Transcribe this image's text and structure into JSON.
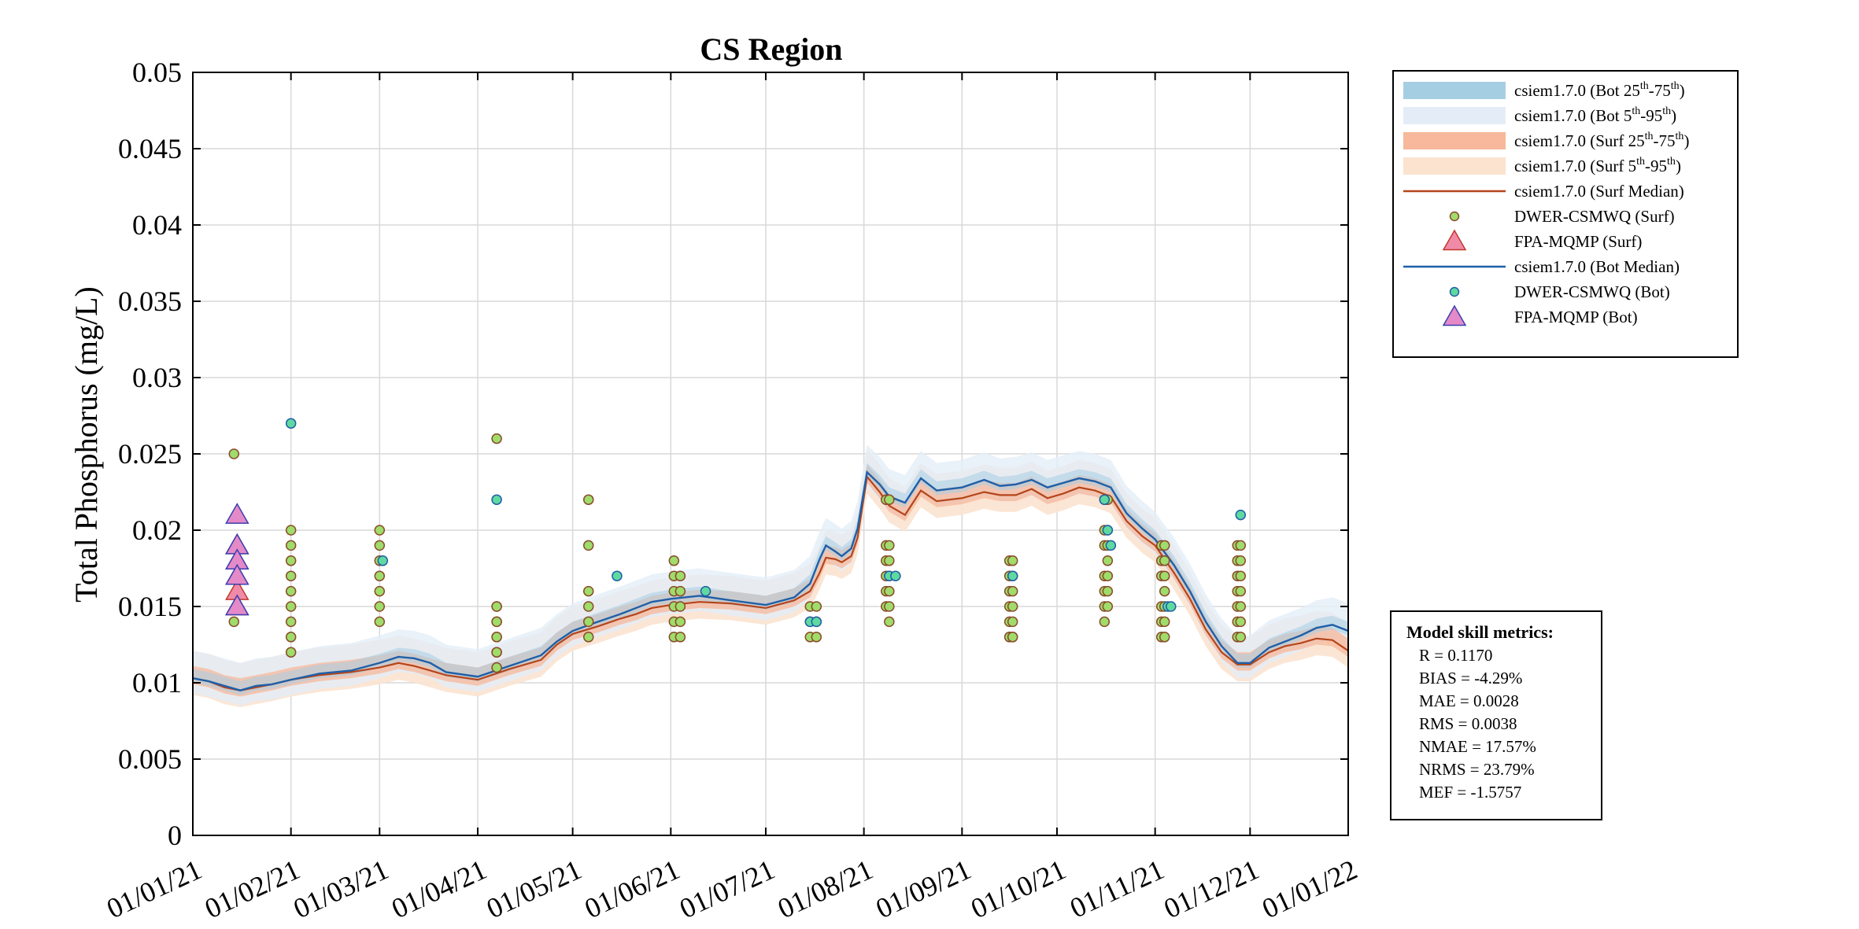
{
  "chart_data": {
    "type": "line",
    "title": "CS Region",
    "xlabel": "",
    "ylabel": "Total Phosphorus (mg/L)",
    "ylim": [
      0,
      0.05
    ],
    "xlim": [
      0,
      365
    ],
    "y_ticks": [
      "0",
      "0.005",
      "0.01",
      "0.015",
      "0.02",
      "0.025",
      "0.03",
      "0.035",
      "0.04",
      "0.045",
      "0.05"
    ],
    "x_ticks": [
      "01/01/21",
      "01/02/21",
      "01/03/21",
      "01/04/21",
      "01/05/21",
      "01/06/21",
      "01/07/21",
      "01/08/21",
      "01/09/21",
      "01/10/21",
      "01/11/21",
      "01/12/21",
      "01/01/22"
    ],
    "grid": true,
    "legend_position": "outside-top-right",
    "legend": [
      {
        "key": "bot2575",
        "text": "csiem1.7.0 (Bot 25",
        "sup1": "th",
        "mid": "-75",
        "sup2": "th",
        "end": ")",
        "color": "#a6cee3",
        "style": "band"
      },
      {
        "key": "bot595",
        "text": "csiem1.7.0 (Bot 5",
        "sup1": "th",
        "mid": "-95",
        "sup2": "th",
        "end": ")",
        "color": "#e4edf7",
        "style": "band"
      },
      {
        "key": "surf2575",
        "text": "csiem1.7.0 (Surf 25",
        "sup1": "th",
        "mid": "-75",
        "sup2": "th",
        "end": ")",
        "color": "#f7b89b",
        "style": "band"
      },
      {
        "key": "surf595",
        "text": "csiem1.7.0 (Surf 5",
        "sup1": "th",
        "mid": "-95",
        "sup2": "th",
        "end": ")",
        "color": "#fbe3d0",
        "style": "band"
      },
      {
        "key": "surfmed",
        "text": "csiem1.7.0 (Surf Median)",
        "color": "#b5451b",
        "style": "line"
      },
      {
        "key": "dwersurf",
        "text": "DWER-CSMWQ (Surf)",
        "color": "#9fdc6b",
        "edge": "#8a4b2a",
        "style": "circle"
      },
      {
        "key": "fpasurf",
        "text": "FPA-MQMP (Surf)",
        "color": "#f08aa9",
        "edge": "#c0392b",
        "style": "triangle"
      },
      {
        "key": "botmed",
        "text": "csiem1.7.0 (Bot Median)",
        "color": "#1f5fa8",
        "style": "line"
      },
      {
        "key": "dwerbot",
        "text": "DWER-CSMWQ (Bot)",
        "color": "#5fd9a0",
        "edge": "#1f5fa8",
        "style": "circle"
      },
      {
        "key": "fpabot",
        "text": "FPA-MQMP (Bot)",
        "color": "#e58ac8",
        "edge": "#3a3fb0",
        "style": "triangle"
      }
    ],
    "surf_median": {
      "x": [
        0,
        5,
        10,
        15,
        20,
        25,
        31,
        40,
        50,
        59,
        65,
        70,
        75,
        80,
        90,
        100,
        110,
        115,
        120,
        128,
        135,
        140,
        145,
        151,
        160,
        170,
        181,
        190,
        195,
        198,
        200,
        203,
        205,
        208,
        210,
        213,
        217,
        220,
        225,
        230,
        235,
        243,
        250,
        255,
        260,
        265,
        270,
        275,
        280,
        285,
        290,
        295,
        300,
        304,
        310,
        315,
        320,
        325,
        330,
        334,
        340,
        345,
        350,
        355,
        360,
        365
      ],
      "y": [
        0.0103,
        0.0101,
        0.0097,
        0.0095,
        0.0097,
        0.0099,
        0.0102,
        0.0105,
        0.0107,
        0.011,
        0.0113,
        0.0111,
        0.0108,
        0.0105,
        0.0102,
        0.0109,
        0.0115,
        0.0125,
        0.0132,
        0.0137,
        0.0142,
        0.0145,
        0.0149,
        0.0151,
        0.0153,
        0.0152,
        0.0149,
        0.0154,
        0.016,
        0.0172,
        0.0182,
        0.0181,
        0.0179,
        0.0183,
        0.0195,
        0.0235,
        0.0225,
        0.0216,
        0.021,
        0.0226,
        0.0219,
        0.0221,
        0.0225,
        0.0223,
        0.0223,
        0.0227,
        0.0221,
        0.0224,
        0.0228,
        0.0226,
        0.0222,
        0.0206,
        0.0196,
        0.019,
        0.0172,
        0.0155,
        0.0135,
        0.012,
        0.0112,
        0.0112,
        0.012,
        0.0124,
        0.0126,
        0.0129,
        0.0128,
        0.0121
      ]
    },
    "bot_median": {
      "x": [
        0,
        5,
        10,
        15,
        20,
        25,
        31,
        40,
        50,
        59,
        65,
        70,
        75,
        80,
        90,
        100,
        110,
        115,
        120,
        128,
        135,
        140,
        145,
        151,
        160,
        170,
        181,
        190,
        195,
        198,
        200,
        203,
        205,
        208,
        210,
        213,
        217,
        220,
        225,
        230,
        235,
        243,
        250,
        255,
        260,
        265,
        270,
        275,
        280,
        285,
        290,
        295,
        300,
        304,
        310,
        315,
        320,
        325,
        330,
        334,
        340,
        345,
        350,
        355,
        360,
        365
      ],
      "y": [
        0.0103,
        0.0101,
        0.0098,
        0.0095,
        0.0098,
        0.0099,
        0.0102,
        0.0106,
        0.0108,
        0.0113,
        0.0117,
        0.0116,
        0.0113,
        0.0107,
        0.0104,
        0.0111,
        0.0118,
        0.0127,
        0.0134,
        0.014,
        0.0145,
        0.0149,
        0.0153,
        0.0155,
        0.0157,
        0.0154,
        0.0151,
        0.0156,
        0.0165,
        0.0181,
        0.019,
        0.0186,
        0.0183,
        0.0188,
        0.0201,
        0.0238,
        0.023,
        0.0222,
        0.0218,
        0.0234,
        0.0226,
        0.0228,
        0.0233,
        0.0229,
        0.023,
        0.0233,
        0.0228,
        0.0231,
        0.0234,
        0.0232,
        0.0228,
        0.0211,
        0.0201,
        0.0194,
        0.0177,
        0.016,
        0.014,
        0.0124,
        0.0113,
        0.0113,
        0.0123,
        0.0127,
        0.0131,
        0.0136,
        0.0138,
        0.0134
      ]
    },
    "dwer_surf": {
      "x": [
        13,
        13,
        31,
        31,
        31,
        31,
        31,
        31,
        31,
        31,
        31,
        59,
        59,
        59,
        59,
        59,
        59,
        59,
        96,
        96,
        96,
        96,
        96,
        96,
        96,
        96,
        96,
        96,
        125,
        125,
        125,
        125,
        125,
        125,
        152,
        152,
        152,
        152,
        152,
        152,
        154,
        154,
        154,
        154,
        154,
        195,
        195,
        195,
        197,
        197,
        197,
        219,
        219,
        219,
        219,
        219,
        219,
        220,
        220,
        220,
        220,
        220,
        220,
        220,
        258,
        258,
        258,
        258,
        258,
        258,
        258,
        259,
        259,
        259,
        259,
        259,
        259,
        259,
        288,
        288,
        288,
        288,
        288,
        288,
        288,
        289,
        289,
        289,
        289,
        289,
        289,
        289,
        306,
        306,
        306,
        306,
        306,
        306,
        307,
        307,
        307,
        307,
        307,
        307,
        307,
        330,
        330,
        330,
        330,
        330,
        330,
        330,
        331,
        331,
        331,
        331,
        331,
        331,
        331
      ],
      "y": [
        0.025,
        0.014,
        0.02,
        0.019,
        0.018,
        0.017,
        0.016,
        0.015,
        0.014,
        0.013,
        0.012,
        0.02,
        0.019,
        0.018,
        0.017,
        0.016,
        0.015,
        0.014,
        0.026,
        0.015,
        0.014,
        0.013,
        0.012,
        0.015,
        0.014,
        0.013,
        0.012,
        0.011,
        0.022,
        0.019,
        0.016,
        0.015,
        0.014,
        0.013,
        0.018,
        0.017,
        0.016,
        0.015,
        0.014,
        0.013,
        0.017,
        0.016,
        0.015,
        0.014,
        0.013,
        0.015,
        0.014,
        0.013,
        0.015,
        0.014,
        0.013,
        0.022,
        0.019,
        0.018,
        0.017,
        0.016,
        0.015,
        0.022,
        0.019,
        0.018,
        0.017,
        0.016,
        0.015,
        0.014,
        0.018,
        0.017,
        0.016,
        0.015,
        0.014,
        0.013,
        0.013,
        0.018,
        0.017,
        0.016,
        0.015,
        0.014,
        0.013,
        0.013,
        0.022,
        0.02,
        0.019,
        0.017,
        0.016,
        0.015,
        0.014,
        0.022,
        0.02,
        0.019,
        0.018,
        0.017,
        0.016,
        0.015,
        0.019,
        0.018,
        0.017,
        0.015,
        0.014,
        0.013,
        0.019,
        0.018,
        0.017,
        0.016,
        0.015,
        0.014,
        0.013,
        0.019,
        0.018,
        0.017,
        0.016,
        0.015,
        0.014,
        0.013,
        0.019,
        0.018,
        0.017,
        0.016,
        0.015,
        0.014,
        0.013
      ]
    },
    "dwer_bot": {
      "x": [
        31,
        60,
        96,
        134,
        162,
        195,
        197,
        220,
        222,
        259,
        288,
        289,
        290,
        308,
        309,
        331
      ],
      "y": [
        0.027,
        0.018,
        0.022,
        0.017,
        0.016,
        0.014,
        0.014,
        0.017,
        0.017,
        0.017,
        0.022,
        0.02,
        0.019,
        0.015,
        0.015,
        0.021
      ]
    },
    "fpa_surf": {
      "x": [
        14,
        14,
        14,
        14,
        14
      ],
      "y": [
        0.019,
        0.018,
        0.017,
        0.016,
        0.015
      ]
    },
    "fpa_bot": {
      "x": [
        14,
        14,
        14,
        14,
        14
      ],
      "y": [
        0.021,
        0.019,
        0.018,
        0.017,
        0.015
      ]
    },
    "metrics": {
      "title": "Model skill metrics:",
      "lines": [
        "R    = 0.1170",
        "BIAS = -4.29%",
        "MAE  = 0.0028",
        "RMS  = 0.0038",
        "NMAE = 17.57%",
        "NRMS = 23.79%",
        "MEF  = -1.5757"
      ]
    }
  }
}
